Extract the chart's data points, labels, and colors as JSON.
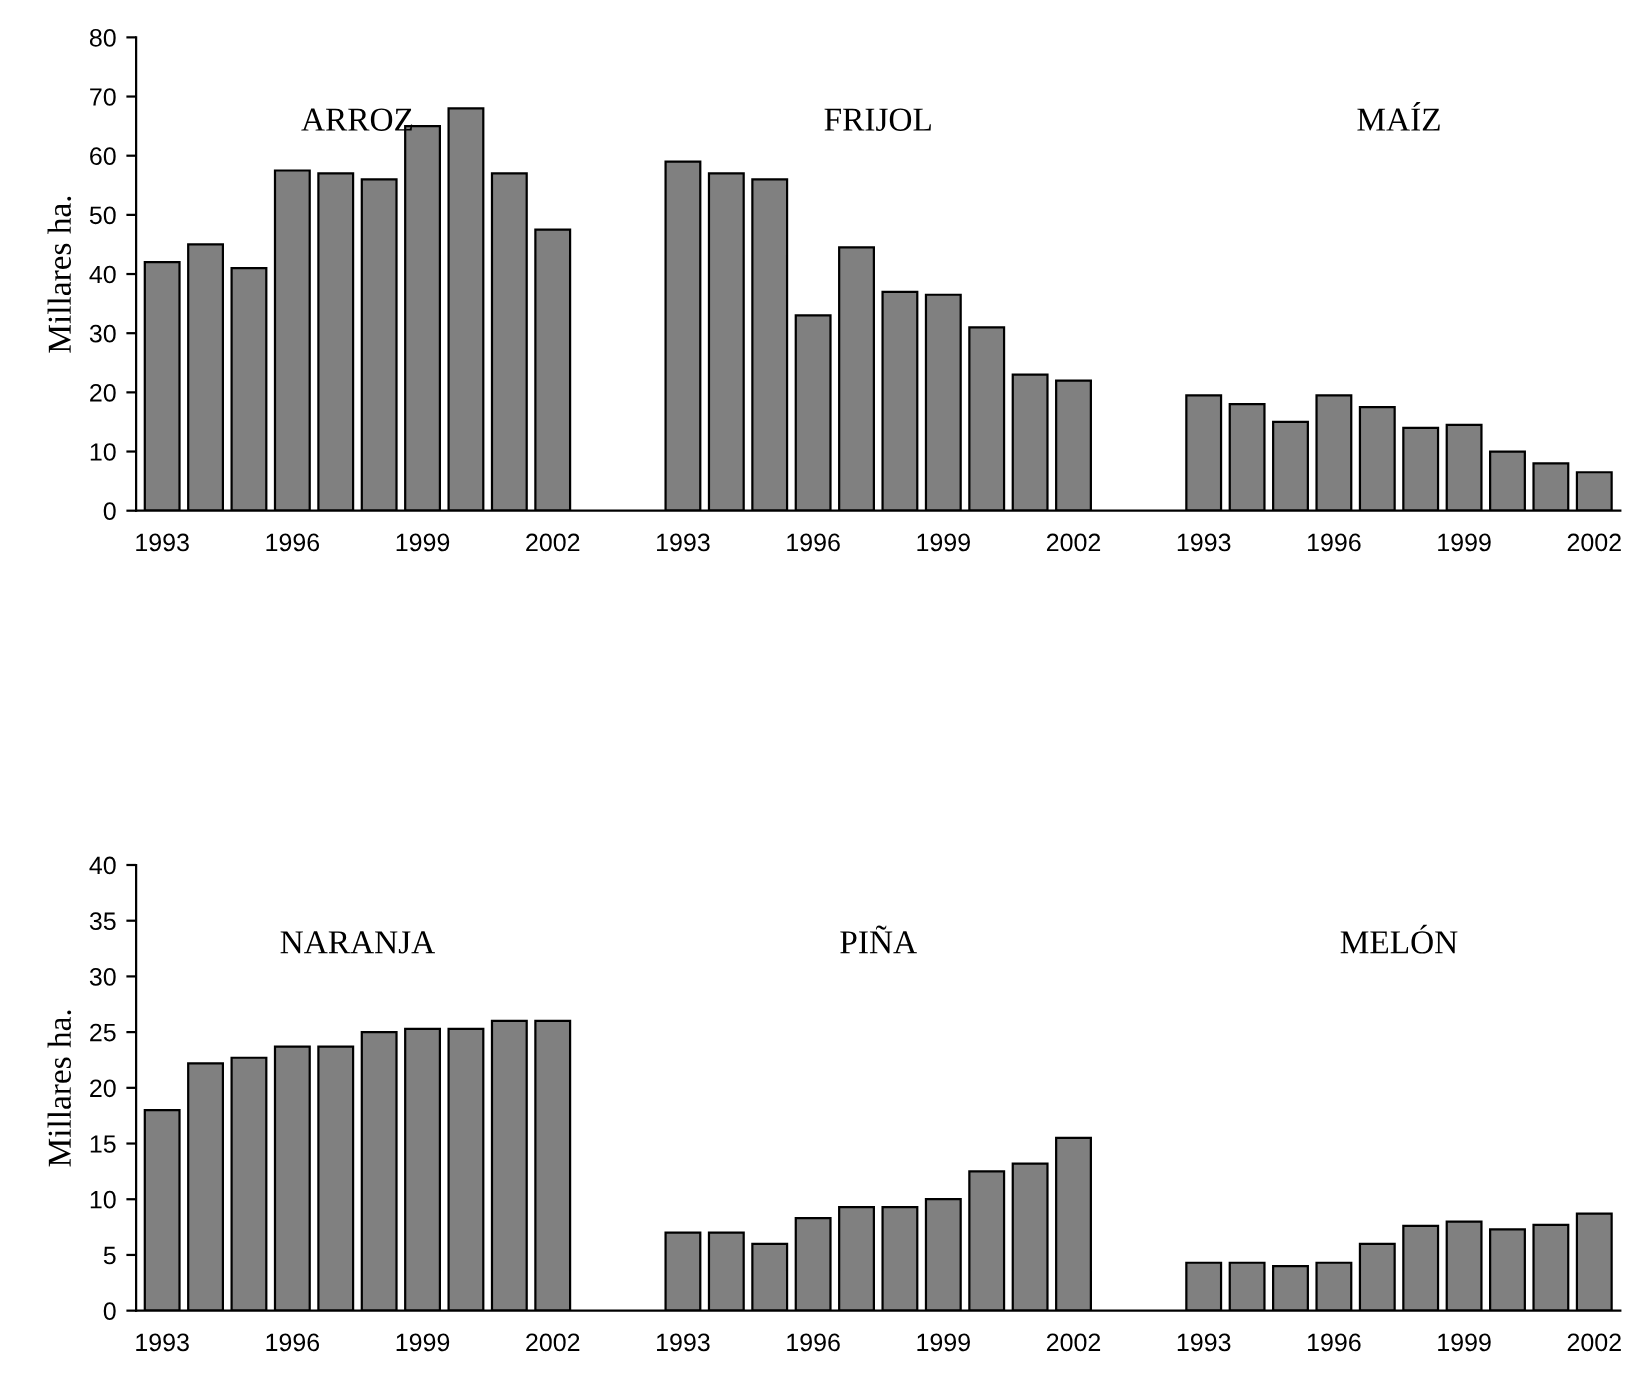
{
  "chart_data": [
    {
      "type": "bar",
      "ylabel": "Millares ha.",
      "color": "#808080",
      "ylim": [
        0,
        80
      ],
      "yticks": [
        0,
        10,
        20,
        30,
        40,
        50,
        60,
        70,
        80
      ],
      "legend": false,
      "grid": false,
      "annotations": [
        "ARROZ",
        "FRIJOL",
        "MAÍZ"
      ],
      "categories": [
        "1993",
        null,
        null,
        "1996",
        null,
        null,
        "1999",
        null,
        null,
        "2002",
        null,
        null,
        "1993",
        null,
        null,
        "1996",
        null,
        null,
        "1999",
        null,
        null,
        "2002",
        null,
        null,
        "1993",
        null,
        null,
        "1996",
        null,
        null,
        "1999",
        null,
        null,
        "2002"
      ],
      "values": [
        42,
        45,
        41,
        57.5,
        57,
        56,
        65,
        68,
        57,
        47.5,
        null,
        null,
        59,
        57,
        56,
        33,
        44.5,
        37,
        36.5,
        31,
        23,
        22,
        null,
        null,
        19.5,
        18,
        15,
        19.5,
        17.5,
        14,
        14.5,
        10,
        8,
        6.5
      ]
    },
    {
      "type": "bar",
      "ylabel": "Millares ha.",
      "color": "#808080",
      "ylim": [
        0,
        40
      ],
      "yticks": [
        0,
        5,
        10,
        15,
        20,
        25,
        30,
        35,
        40
      ],
      "legend": false,
      "grid": false,
      "annotations": [
        "NARANJA",
        "PIÑA",
        "MELÓN"
      ],
      "categories": [
        "1993",
        null,
        null,
        "1996",
        null,
        null,
        "1999",
        null,
        null,
        "2002",
        null,
        null,
        "1993",
        null,
        null,
        "1996",
        null,
        null,
        "1999",
        null,
        null,
        "2002",
        null,
        null,
        "1993",
        null,
        null,
        "1996",
        null,
        null,
        "1999",
        null,
        null,
        "2002"
      ],
      "values": [
        18,
        22.2,
        22.7,
        23.7,
        23.7,
        25,
        25.3,
        25.3,
        26,
        26,
        null,
        null,
        7,
        7,
        6,
        8.3,
        9.3,
        9.3,
        10,
        12.5,
        13.2,
        15.5,
        null,
        null,
        4.3,
        4.3,
        4,
        4.3,
        6,
        7.6,
        8,
        7.3,
        7.7,
        8.7
      ]
    }
  ]
}
